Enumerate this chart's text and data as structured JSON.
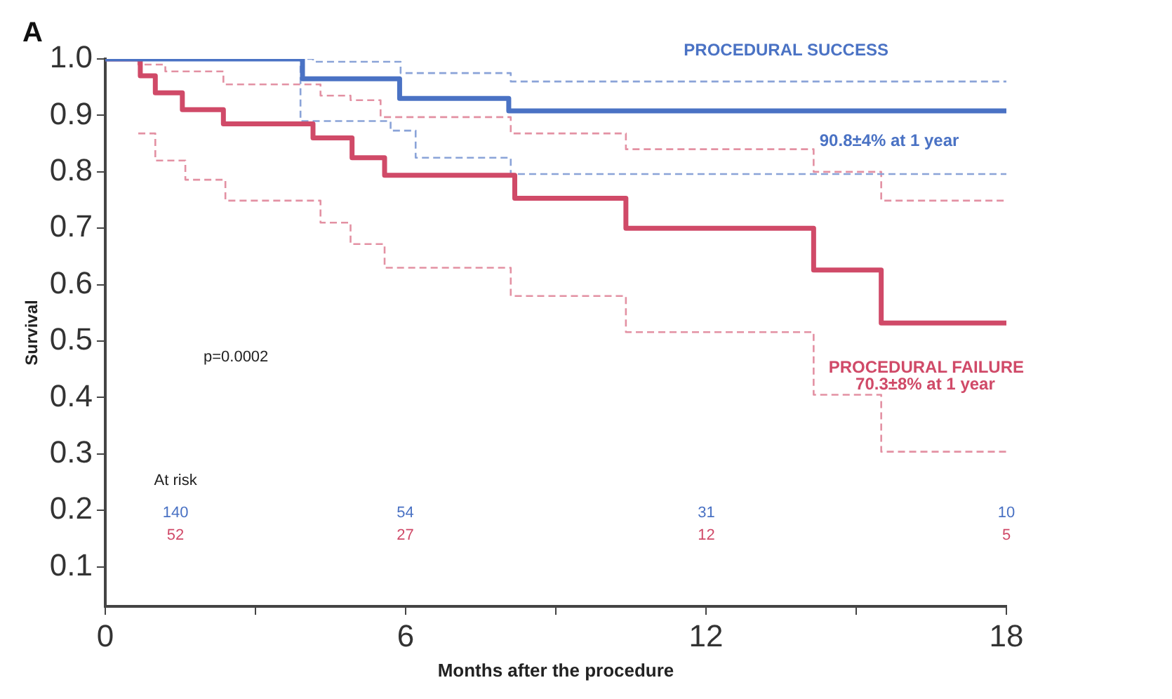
{
  "chart_data": {
    "type": "step",
    "title": "A",
    "xlabel": "Months after the procedure",
    "ylabel": "Survival",
    "xlim": [
      0,
      18
    ],
    "xticks": [
      0,
      {
        "value": 3,
        "label": null
      },
      6,
      {
        "value": 9,
        "label": null
      },
      12,
      {
        "value": 15,
        "label": null
      },
      18
    ],
    "ylim": [
      0.03,
      1.0
    ],
    "yticks": [
      0.1,
      0.2,
      0.3,
      0.4,
      0.5,
      0.6,
      0.7,
      0.8,
      0.9,
      {
        "value": 1.0,
        "label": "1.0"
      }
    ],
    "grid": false,
    "legend": false,
    "marker": "none",
    "series": [
      {
        "name": "PROCEDURAL SUCCESS",
        "color": "#4a72c4",
        "line_style": "solid",
        "x": [
          0,
          3.94,
          5.88,
          8.06,
          18
        ],
        "values": [
          1.0,
          0.965,
          0.93,
          0.908,
          0.908
        ]
      },
      {
        "name": "PROCEDURAL FAILURE",
        "color": "#d04a68",
        "line_style": "solid",
        "x": [
          0,
          0.7,
          1.0,
          1.54,
          2.36,
          4.15,
          4.93,
          5.58,
          8.18,
          10.4,
          14.15,
          15.5,
          18
        ],
        "values": [
          1.0,
          0.97,
          0.94,
          0.91,
          0.885,
          0.86,
          0.825,
          0.794,
          0.753,
          0.7,
          0.626,
          0.532,
          0.532
        ]
      },
      {
        "color": "#8aa3d8",
        "line_style": "dashed",
        "x": [
          0,
          4.15,
          5.9,
          8.1,
          18
        ],
        "values": [
          1.0,
          0.995,
          0.975,
          0.96,
          0.96
        ]
      },
      {
        "color": "#8aa3d8",
        "line_style": "dashed",
        "x": [
          0,
          3.9,
          5.7,
          6.2,
          8.1,
          18
        ],
        "values": [
          1.0,
          0.89,
          0.873,
          0.825,
          0.796,
          0.796
        ]
      },
      {
        "color": "#e391a3",
        "line_style": "dashed",
        "x": [
          0,
          0.66,
          1.2,
          2.36,
          4.3,
          4.9,
          5.5,
          8.1,
          10.4,
          14.15,
          15.5,
          18
        ],
        "values": [
          1.0,
          0.99,
          0.978,
          0.955,
          0.935,
          0.927,
          0.897,
          0.868,
          0.84,
          0.8,
          0.749,
          0.749
        ]
      },
      {
        "color": "#e391a3",
        "line_style": "dashed",
        "x": [
          0.66,
          1.0,
          1.6,
          2.4,
          4.3,
          4.9,
          5.58,
          8.1,
          10.4,
          14.15,
          15.5,
          18
        ],
        "values": [
          0.868,
          0.82,
          0.786,
          0.749,
          0.71,
          0.672,
          0.63,
          0.58,
          0.516,
          0.405,
          0.304,
          0.304
        ]
      }
    ],
    "annotations": [
      "90.8±4% at 1 year",
      "70.3±8% at 1 year",
      "p=0.0002",
      "At risk",
      "140",
      "54",
      "31",
      "10",
      "52",
      "27",
      "12",
      "5"
    ]
  }
}
